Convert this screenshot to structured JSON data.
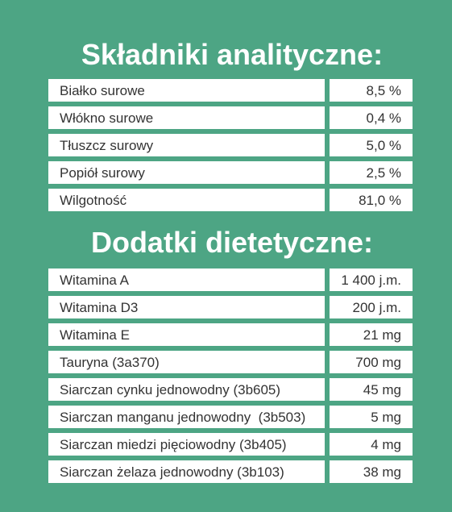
{
  "sections": [
    {
      "title": "Składniki analityczne:",
      "rows": [
        [
          "Białko surowe",
          "8,5 %"
        ],
        [
          "Włókno surowe",
          "0,4 %"
        ],
        [
          "Tłuszcz surowy",
          "5,0 %"
        ],
        [
          "Popiół surowy",
          "2,5 %"
        ],
        [
          "Wilgotność",
          "81,0 %"
        ]
      ]
    },
    {
      "title": "Dodatki dietetyczne:",
      "rows": [
        [
          "Witamina A",
          "1 400 j.m."
        ],
        [
          "Witamina D3",
          "200 j.m."
        ],
        [
          "Witamina E",
          "21 mg"
        ],
        [
          "Tauryna (3a370)",
          "700 mg"
        ],
        [
          "Siarczan cynku jednowodny (3b605)",
          "45 mg"
        ],
        [
          "Siarczan manganu jednowodny  (3b503)",
          "5 mg"
        ],
        [
          "Siarczan miedzi pięciowodny (3b405)",
          "4 mg"
        ],
        [
          "Siarczan żelaza jednowodny (3b103)",
          "38 mg"
        ]
      ]
    }
  ]
}
